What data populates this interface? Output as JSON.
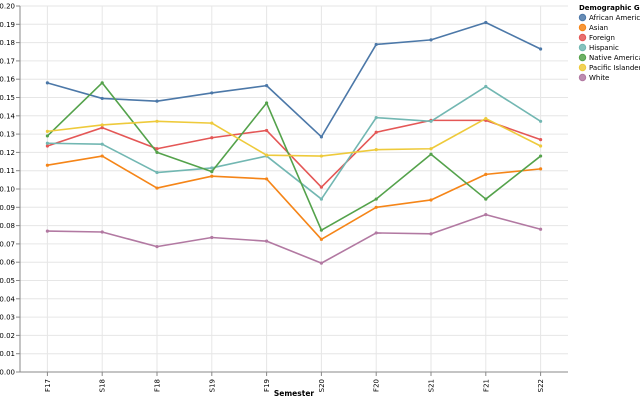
{
  "chart_data": {
    "type": "line",
    "xlabel": "Semester",
    "ylabel": "",
    "ylim": [
      0,
      0.2
    ],
    "ytick_step": 0.01,
    "grid": true,
    "legend_placement": "top-right",
    "legend_title": "Demographic Gr",
    "categories": [
      "F17",
      "S18",
      "F18",
      "S19",
      "F19",
      "S20",
      "F20",
      "S21",
      "F21",
      "S22"
    ],
    "series": [
      {
        "name": "African America",
        "color": "#4c78a8",
        "values": [
          0.158,
          0.1495,
          0.148,
          0.1525,
          0.1565,
          0.1285,
          0.179,
          0.1815,
          0.191,
          0.1765
        ]
      },
      {
        "name": "Asian",
        "color": "#f58518",
        "values": [
          0.113,
          0.118,
          0.1005,
          0.107,
          0.1055,
          0.0725,
          0.09,
          0.094,
          0.108,
          0.111
        ]
      },
      {
        "name": "Foreign",
        "color": "#e45756",
        "values": [
          0.1235,
          0.1335,
          0.122,
          0.128,
          0.132,
          0.101,
          0.131,
          0.1375,
          0.1375,
          0.127
        ]
      },
      {
        "name": "Hispanic",
        "color": "#72b7b2",
        "values": [
          0.125,
          0.1245,
          0.109,
          0.1115,
          0.118,
          0.0945,
          0.139,
          0.137,
          0.156,
          0.137
        ]
      },
      {
        "name": "Native America",
        "color": "#54a24b",
        "values": [
          0.129,
          0.158,
          0.12,
          0.1095,
          0.147,
          0.0775,
          0.0945,
          0.119,
          0.0945,
          0.118
        ]
      },
      {
        "name": "Pacific Islander",
        "color": "#eeca3b",
        "values": [
          0.1315,
          0.135,
          0.137,
          0.136,
          0.1185,
          0.118,
          0.1215,
          0.122,
          0.1385,
          0.1235
        ]
      },
      {
        "name": "White",
        "color": "#b279a2",
        "values": [
          0.077,
          0.0765,
          0.0685,
          0.0735,
          0.0715,
          0.0595,
          0.076,
          0.0755,
          0.086,
          0.078
        ]
      }
    ]
  }
}
